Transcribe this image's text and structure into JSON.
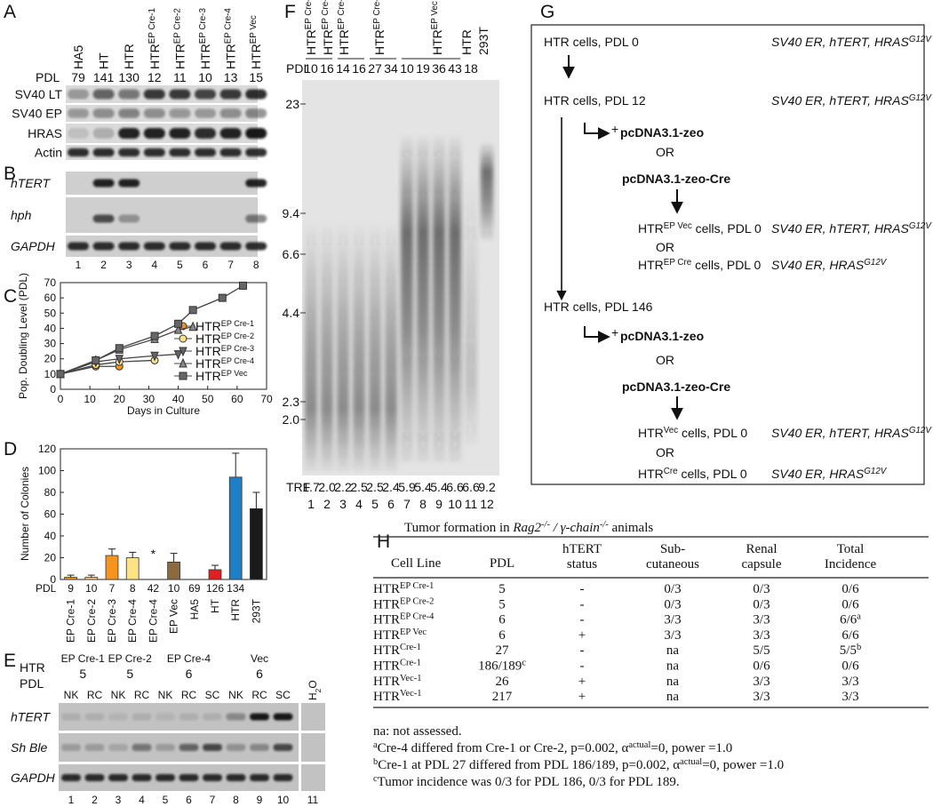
{
  "A": {
    "label": "A",
    "lanes": [
      "HA5",
      "HT",
      "HTR",
      [
        "HTR",
        {
          "t": "EP Cre-1",
          "s": "sup"
        }
      ],
      [
        "HTR",
        {
          "t": "EP Cre-2",
          "s": "sup"
        }
      ],
      [
        "HTR",
        {
          "t": "EP Cre-3",
          "s": "sup"
        }
      ],
      [
        "HTR",
        {
          "t": "EP Cre-4",
          "s": "sup"
        }
      ],
      [
        "HTR",
        {
          "t": "EP Vec",
          "s": "sup"
        }
      ]
    ],
    "pdl_label": "PDL",
    "pdl": [
      79,
      141,
      130,
      12,
      11,
      10,
      13,
      15
    ],
    "rows": [
      "SV40 LT",
      "SV40 EP",
      "HRAS",
      "Actin"
    ]
  },
  "B": {
    "label": "B",
    "rows": [
      "hTERT",
      "hph",
      "GAPDH"
    ],
    "lanes": [
      1,
      2,
      3,
      4,
      5,
      6,
      7,
      8
    ]
  },
  "chart_data": [
    {
      "label": "C",
      "type": "line",
      "y_label": "Pop. Doubling Level (PDL)",
      "x_label": "Days in Culture",
      "xlim": [
        0,
        70
      ],
      "xticks": [
        0,
        10,
        20,
        30,
        40,
        50,
        60,
        70
      ],
      "ylim": [
        0,
        70
      ],
      "yticks": [
        0,
        10,
        20,
        30,
        40,
        50,
        60,
        70
      ],
      "series": [
        {
          "name": "HTR",
          "name_sup": "EP Cre-1",
          "color": "#f7941d",
          "marker": "circle",
          "x": [
            0,
            12,
            20
          ],
          "values": [
            10,
            15,
            15
          ]
        },
        {
          "name": "HTR",
          "name_sup": "EP Cre-2",
          "color": "#fde383",
          "marker": "circle",
          "x": [
            0,
            12,
            20,
            32
          ],
          "values": [
            10,
            16,
            18,
            19
          ]
        },
        {
          "name": "HTR",
          "name_sup": "EP Cre-3",
          "color": "#666666",
          "marker": "triangle-down",
          "x": [
            0,
            12,
            20,
            32,
            40
          ],
          "values": [
            10,
            18,
            20,
            22,
            23
          ]
        },
        {
          "name": "HTR",
          "name_sup": "EP Cre-4",
          "color": "#888888",
          "marker": "triangle-up",
          "x": [
            0,
            12,
            20,
            32,
            40,
            45
          ],
          "values": [
            10,
            19,
            26,
            33,
            39,
            41
          ]
        },
        {
          "name": "HTR",
          "name_sup": "EP Vec",
          "color": "#666666",
          "marker": "square",
          "x": [
            0,
            12,
            20,
            32,
            40,
            45,
            55,
            62
          ],
          "values": [
            10,
            19,
            27,
            35,
            43,
            52,
            60,
            68
          ]
        }
      ]
    },
    {
      "label": "D",
      "type": "bar",
      "y_label": "Number of Colonies",
      "categories": [
        "EP Cre-1",
        "EP Cre-2",
        "EP Cre-3",
        "EP Cre-4",
        "EP Cre-4",
        "EP Vec",
        "HA5",
        "HT",
        "HTR",
        "293T"
      ],
      "values": [
        2,
        2,
        22,
        20,
        0,
        16,
        0,
        9,
        94,
        65
      ],
      "errors": [
        2,
        2,
        6,
        5,
        null,
        8,
        null,
        4,
        22,
        15
      ],
      "colors": [
        "#f7941d",
        "#fbc48a",
        "#f7941d",
        "#fde383",
        "#ffffff",
        "#8b6a3e",
        "#ffffff",
        "#e02020",
        "#1f7fc6",
        "#1a1a1a"
      ],
      "ylim": [
        0,
        120
      ],
      "yticks": [
        0,
        20,
        40,
        60,
        80,
        100,
        120
      ],
      "pdl_label": "PDL",
      "pdl": [
        9,
        10,
        7,
        8,
        42,
        10,
        69,
        126,
        134,
        null
      ],
      "annotations": [
        {
          "text": "*",
          "category": 4
        }
      ]
    }
  ],
  "E": {
    "label": "E",
    "htr": "HTR",
    "pdl_label": "PDL",
    "groups": [
      {
        "name": "EP Cre-1",
        "pdl": 5
      },
      {
        "name": "EP Cre-2",
        "pdl": 5
      },
      {
        "name": "EP Cre-4",
        "pdl": 6
      },
      {
        "name": "Vec",
        "pdl": 6
      }
    ],
    "lanes": [
      "NK",
      "RC",
      "NK",
      "RC",
      "NK",
      "RC",
      "SC",
      "NK",
      "RC",
      "SC",
      [
        "H",
        {
          "t": "2",
          "s": "sub"
        },
        "O"
      ]
    ],
    "rows": [
      "hTERT",
      "Sh Ble",
      "GAPDH"
    ],
    "numbers": [
      1,
      2,
      3,
      4,
      5,
      6,
      7,
      8,
      9,
      10,
      11
    ]
  },
  "F": {
    "label": "F",
    "groups": [
      [
        "HTR",
        {
          "t": "EP Cre-1",
          "s": "sup"
        }
      ],
      [
        "HTR",
        {
          "t": "EP Cre-2",
          "s": "sup"
        }
      ],
      [
        "HTR",
        {
          "t": "EP Cre-3",
          "s": "sup"
        }
      ],
      [
        "HTR",
        {
          "t": "EP Cre-4",
          "s": "sup"
        }
      ],
      [
        "HTR",
        {
          "t": "EP Vec",
          "s": "sup"
        }
      ],
      "HTR",
      "293T"
    ],
    "pdl_label": "PDL",
    "pdl": [
      10,
      16,
      14,
      16,
      27,
      34,
      10,
      19,
      36,
      43,
      18
    ],
    "markers": [
      "23",
      "9.4",
      "6.6",
      "4.4",
      "2.3",
      "2.0"
    ],
    "trf_label": "TRF",
    "trf": [
      "1.7",
      "2.0",
      "2.2",
      "2.5",
      "2.5",
      "2.4",
      "5.9",
      "5.4",
      "5.4",
      "6.6",
      "6.6",
      "9.2"
    ],
    "lanes": [
      1,
      2,
      3,
      4,
      5,
      6,
      7,
      8,
      9,
      10,
      11,
      12
    ]
  },
  "G": {
    "label": "G",
    "texts": [
      "HTR cells, PDL 0",
      "HTR cells, PDL 12",
      "+",
      "pcDNA3.1-zeo",
      "OR",
      "pcDNA3.1-zeo-Cre",
      [
        "HTR",
        {
          "t": "EP Vec",
          "s": "sup"
        },
        " cells, PDL 0"
      ],
      "OR",
      [
        "HTR",
        {
          "t": "EP Cre",
          "s": "sup"
        },
        " cells, PDL 0"
      ],
      "HTR cells, PDL 146",
      "+",
      "pcDNA3.1-zeo",
      "OR",
      "pcDNA3.1-zeo-Cre",
      [
        "HTR",
        {
          "t": "Vec",
          "s": "sup"
        },
        " cells, PDL 0"
      ],
      "OR",
      [
        "HTR",
        {
          "t": "Cre",
          "s": "sup"
        },
        " cells, PDL 0"
      ]
    ],
    "genotypes": [
      [
        {
          "t": "SV40 ER, hTERT, HRAS",
          "s": "i"
        },
        {
          "t": "G12V",
          "s": "isup"
        }
      ],
      [
        {
          "t": "SV40 ER, hTERT, HRAS",
          "s": "i"
        },
        {
          "t": "G12V",
          "s": "isup"
        }
      ],
      [
        {
          "t": "SV40 ER, hTERT, HRAS",
          "s": "i"
        },
        {
          "t": "G12V",
          "s": "isup"
        }
      ],
      [
        {
          "t": "SV40 ER, HRAS",
          "s": "i"
        },
        {
          "t": "G12V",
          "s": "isup"
        }
      ],
      [
        {
          "t": "SV40 ER, hTERT, HRAS",
          "s": "i"
        },
        {
          "t": "G12V",
          "s": "isup"
        }
      ],
      [
        {
          "t": "SV40 ER, HRAS",
          "s": "i"
        },
        {
          "t": "G12V",
          "s": "isup"
        }
      ]
    ]
  },
  "H": {
    "label": "H",
    "title": [
      "Tumor formation in ",
      {
        "t": "Rag2",
        "s": "i"
      },
      {
        "t": "-/-",
        "s": "isup"
      },
      {
        "t": " / ",
        "s": "i"
      },
      {
        "t": "γ-chain",
        "s": "i"
      },
      {
        "t": "-/-",
        "s": "isup"
      },
      " animals"
    ],
    "headers": [
      [
        "Cell Line"
      ],
      [
        "PDL"
      ],
      [
        "hTERT",
        "status"
      ],
      [
        "Sub-",
        "cutaneous"
      ],
      [
        "Renal",
        "capsule"
      ],
      [
        "Total",
        "Incidence"
      ]
    ],
    "rows": [
      [
        [
          "HTR",
          {
            "t": "EP Cre-1",
            "s": "sup"
          }
        ],
        "5",
        "-",
        "0/3",
        "0/3",
        "0/6"
      ],
      [
        [
          "HTR",
          {
            "t": "EP Cre-2",
            "s": "sup"
          }
        ],
        "5",
        "-",
        "0/3",
        "0/3",
        "0/6"
      ],
      [
        [
          "HTR",
          {
            "t": "EP Cre-4",
            "s": "sup"
          }
        ],
        "6",
        "-",
        "3/3",
        "3/3",
        [
          "6/6",
          {
            "t": "a",
            "s": "sup"
          }
        ]
      ],
      [
        [
          "HTR",
          {
            "t": "EP Vec",
            "s": "sup"
          }
        ],
        "6",
        "+",
        "3/3",
        "3/3",
        "6/6"
      ],
      [
        [
          "HTR",
          {
            "t": "Cre-1",
            "s": "sup"
          }
        ],
        "27",
        "-",
        "na",
        "5/5",
        [
          "5/5",
          {
            "t": "b",
            "s": "sup"
          }
        ]
      ],
      [
        [
          "HTR",
          {
            "t": "Cre-1",
            "s": "sup"
          }
        ],
        [
          "186/189",
          {
            "t": "c",
            "s": "sup"
          }
        ],
        "-",
        "na",
        "0/6",
        "0/6"
      ],
      [
        [
          "HTR",
          {
            "t": "Vec-1",
            "s": "sup"
          }
        ],
        "26",
        "+",
        "na",
        "3/3",
        "3/3"
      ],
      [
        [
          "HTR",
          {
            "t": "Vec-1",
            "s": "sup"
          }
        ],
        "217",
        "+",
        "na",
        "3/3",
        "3/3"
      ]
    ],
    "footnotes": [
      "na: not assessed.",
      [
        {
          "t": "a",
          "s": "sup"
        },
        "Cre-4 differed from Cre-1 or Cre-2, p=0.002, α",
        {
          "t": "actual",
          "s": "sup"
        },
        "=0, power =1.0"
      ],
      [
        {
          "t": "b",
          "s": "sup"
        },
        "Cre-1 at PDL 27 differed from PDL 186/189, p=0.002, α",
        {
          "t": "actual",
          "s": "sup"
        },
        "=0, power =1.0"
      ],
      [
        {
          "t": "c",
          "s": "sup"
        },
        "Tumor incidence was 0/3 for PDL 186, 0/3 for PDL 189."
      ]
    ]
  }
}
